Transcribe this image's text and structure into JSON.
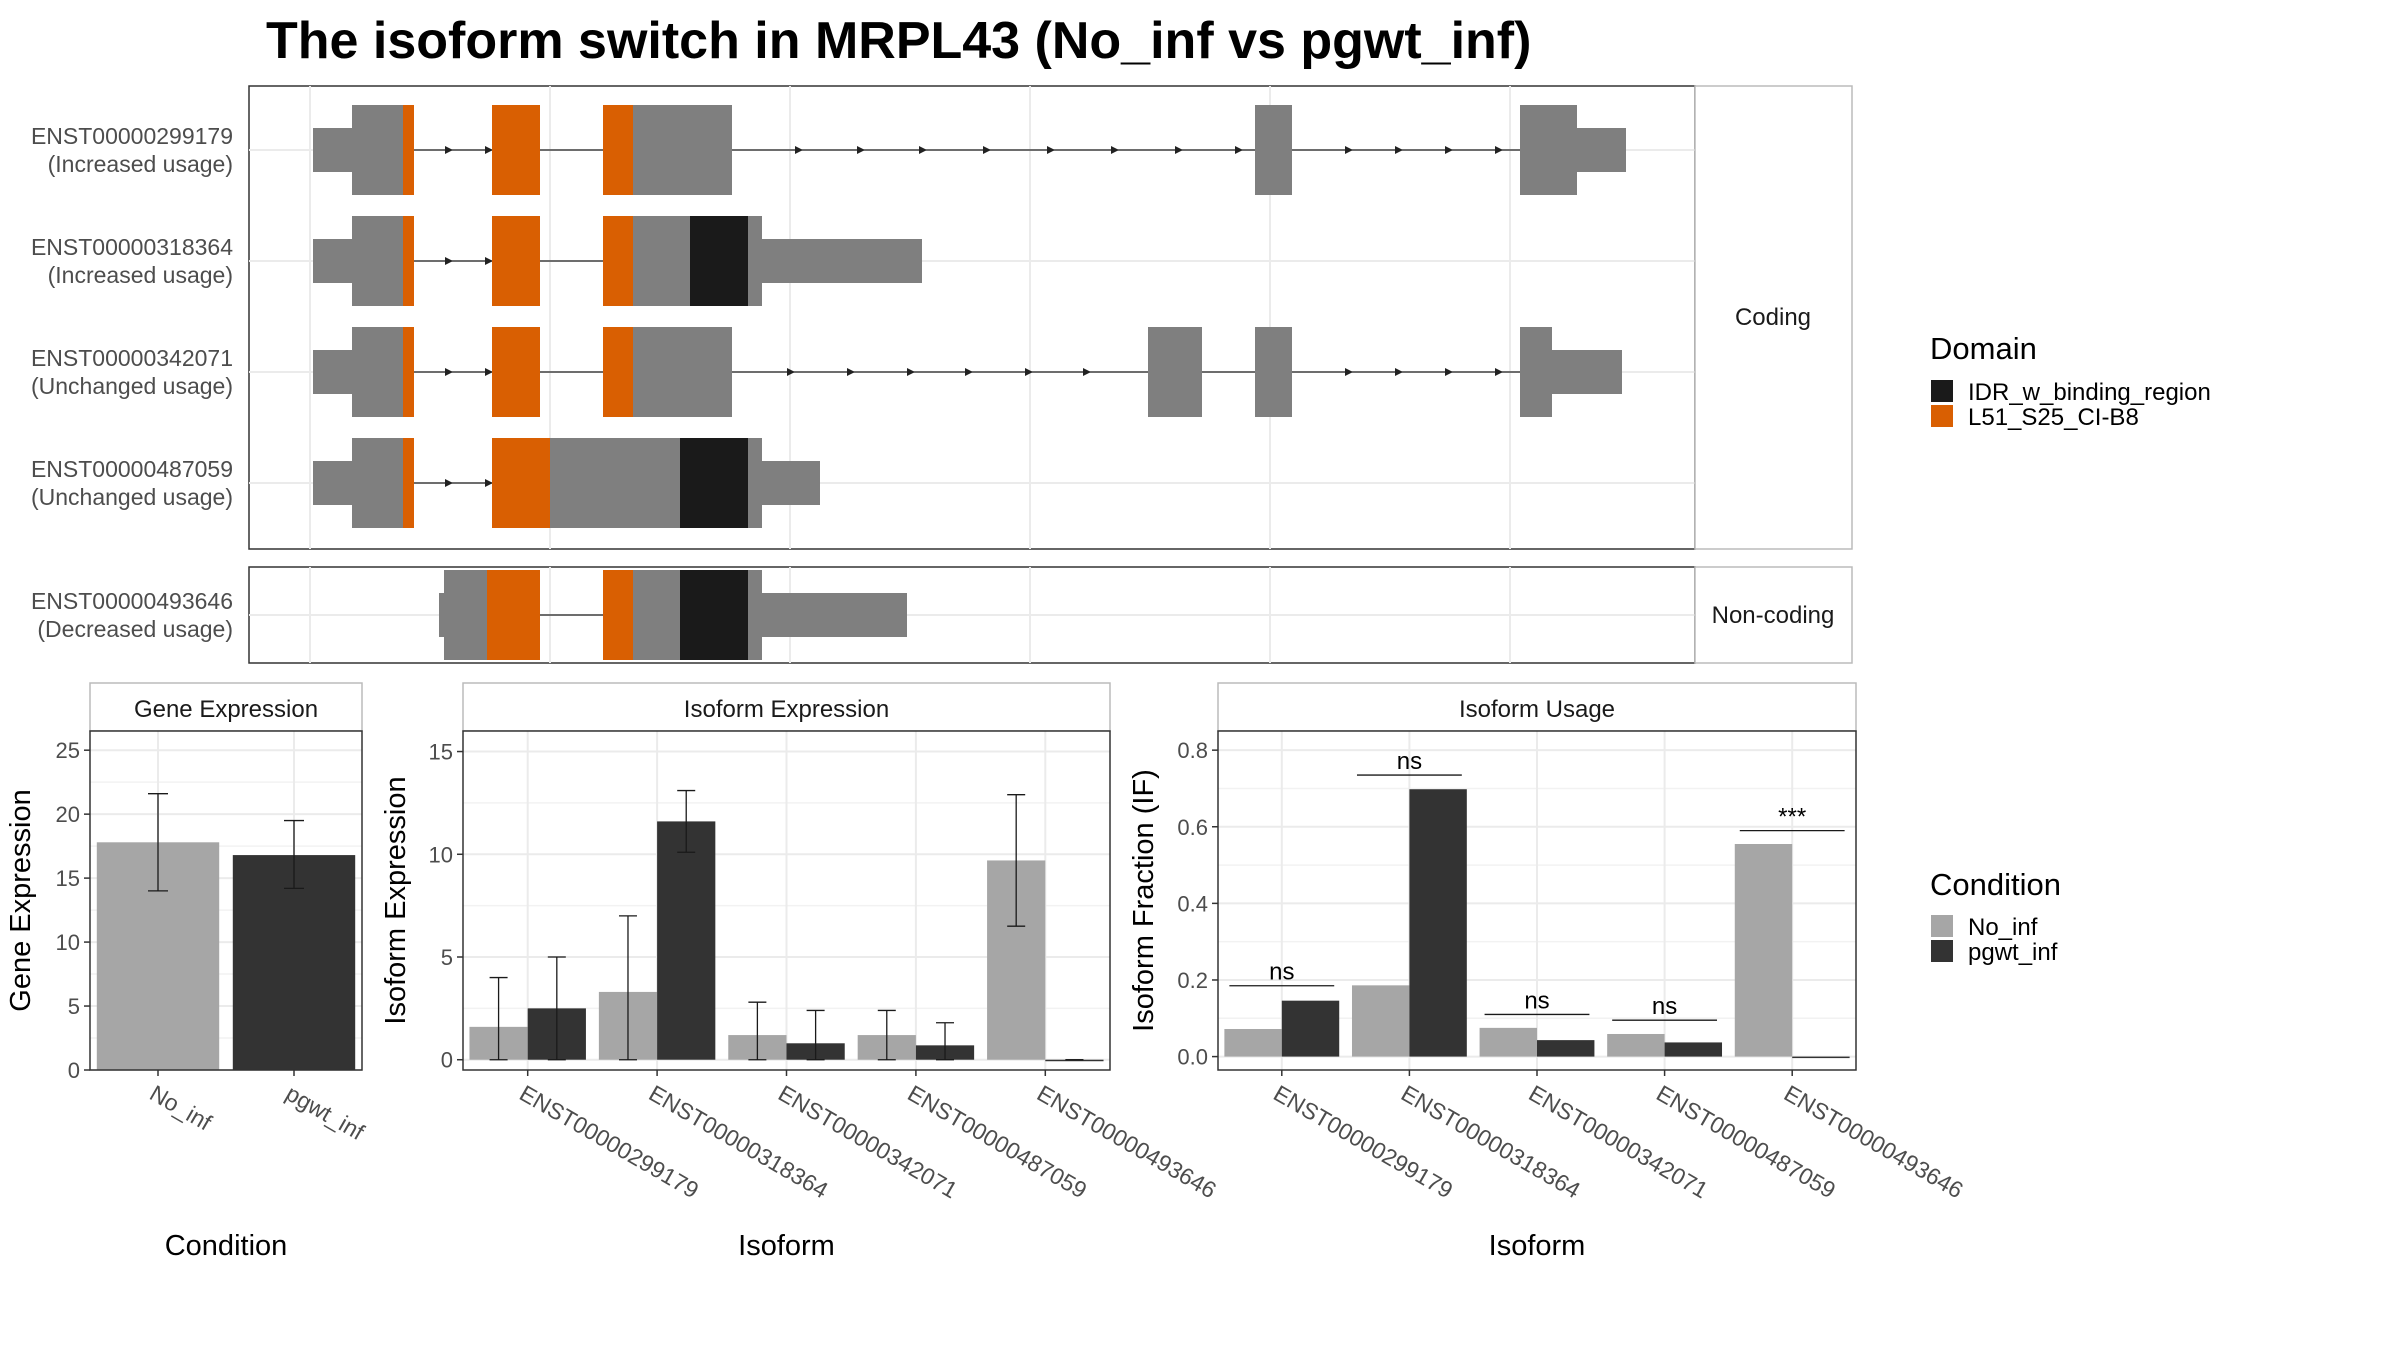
{
  "title": "The isoform switch in MRPL43 (No_inf vs pgwt_inf)",
  "chart_data": [
    {
      "type": "gene-structure",
      "facets": [
        "Coding",
        "Non-coding"
      ],
      "transcripts": [
        {
          "id": "ENST00000299179",
          "usage": "(Increased usage)",
          "facet": "Coding"
        },
        {
          "id": "ENST00000318364",
          "usage": "(Increased usage)",
          "facet": "Coding"
        },
        {
          "id": "ENST00000342071",
          "usage": "(Unchanged usage)",
          "facet": "Coding"
        },
        {
          "id": "ENST00000487059",
          "usage": "(Unchanged usage)",
          "facet": "Coding"
        },
        {
          "id": "ENST00000493646",
          "usage": "(Decreased usage)",
          "facet": "Non-coding"
        }
      ],
      "legend": {
        "title": "Domain",
        "items": [
          {
            "label": "IDR_w_binding_region",
            "color": "#1a1a1a"
          },
          {
            "label": "L51_S25_CI-B8",
            "color": "#d95f02"
          }
        ]
      },
      "exon_color": "#7f7f7f"
    },
    {
      "type": "bar",
      "title": "Gene Expression",
      "xlabel": "Condition",
      "ylabel": "Gene Expression",
      "ylim": [
        0,
        26.5
      ],
      "yticks": [
        "0",
        "5",
        "10",
        "15",
        "20",
        "25"
      ],
      "categories": [
        "No_inf",
        "pgwt_inf"
      ],
      "values": [
        17.8,
        16.8
      ],
      "error_low": [
        14.0,
        14.2
      ],
      "error_high": [
        21.6,
        19.5
      ]
    },
    {
      "type": "bar",
      "title": "Isoform Expression",
      "xlabel": "Isoform",
      "ylabel": "Isoform Expression",
      "ylim": [
        -0.5,
        16.0
      ],
      "yticks": [
        "0",
        "5",
        "10",
        "15"
      ],
      "categories": [
        "ENST00000299179",
        "ENST00000318364",
        "ENST00000342071",
        "ENST00000487059",
        "ENST00000493646"
      ],
      "series": [
        {
          "name": "No_inf",
          "values": [
            1.6,
            3.3,
            1.2,
            1.2,
            9.7
          ],
          "error_low": [
            0.0,
            0.0,
            0.0,
            0.0,
            6.5
          ],
          "error_high": [
            4.0,
            7.0,
            2.8,
            2.4,
            12.9
          ]
        },
        {
          "name": "pgwt_inf",
          "values": [
            2.5,
            11.6,
            0.8,
            0.7,
            0.0
          ],
          "error_low": [
            0.0,
            10.1,
            0.0,
            0.0,
            0.0
          ],
          "error_high": [
            5.0,
            13.1,
            2.4,
            1.8,
            0.0
          ]
        }
      ]
    },
    {
      "type": "bar",
      "title": "Isoform Usage",
      "xlabel": "Isoform",
      "ylabel": "Isoform Fraction (IF)",
      "ylim": [
        -0.035,
        0.85
      ],
      "yticks": [
        "0.0",
        "0.2",
        "0.4",
        "0.6",
        "0.8"
      ],
      "categories": [
        "ENST00000299179",
        "ENST00000318364",
        "ENST00000342071",
        "ENST00000487059",
        "ENST00000493646"
      ],
      "series": [
        {
          "name": "No_inf",
          "values": [
            0.072,
            0.186,
            0.075,
            0.059,
            0.555
          ]
        },
        {
          "name": "pgwt_inf",
          "values": [
            0.146,
            0.698,
            0.043,
            0.037,
            0.0
          ]
        }
      ],
      "significance": [
        "ns",
        "ns",
        "ns",
        "ns",
        "***"
      ],
      "significance_y": [
        0.185,
        0.735,
        0.11,
        0.095,
        0.59
      ]
    }
  ],
  "condition_legend": {
    "title": "Condition",
    "items": [
      {
        "label": "No_inf",
        "color": "#a6a6a6"
      },
      {
        "label": "pgwt_inf",
        "color": "#333333"
      }
    ]
  }
}
